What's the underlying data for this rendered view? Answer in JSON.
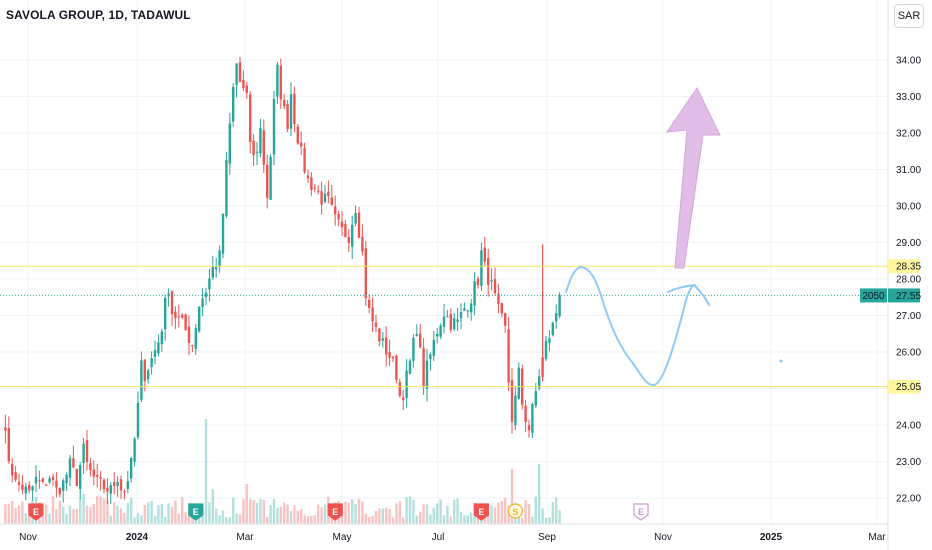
{
  "header": {
    "title": "SAVOLA GROUP, 1D, TADAWUL",
    "currency": "SAR"
  },
  "chart_data": {
    "type": "candlestick",
    "symbol": "SAVOLA GROUP",
    "interval": "1D",
    "exchange": "TADAWUL",
    "ylim": [
      21.6,
      34.9
    ],
    "y_ticks": [
      "22.00",
      "23.00",
      "24.00",
      "25.00",
      "26.00",
      "27.00",
      "28.00",
      "29.00",
      "30.00",
      "31.00",
      "32.00",
      "33.00",
      "34.00"
    ],
    "x_ticks": [
      {
        "label": "Nov",
        "bold": false
      },
      {
        "label": "2024",
        "bold": true
      },
      {
        "label": "Mar",
        "bold": false
      },
      {
        "label": "May",
        "bold": false
      },
      {
        "label": "Jul",
        "bold": false
      },
      {
        "label": "Sep",
        "bold": false
      },
      {
        "label": "Nov",
        "bold": false
      },
      {
        "label": "2025",
        "bold": true
      },
      {
        "label": "Mar",
        "bold": false
      }
    ],
    "colors": {
      "up": "#26a69a",
      "down": "#ef5350",
      "level_line": "#f5e663",
      "last_price": "#26a69a",
      "arrow": "#e1bee7",
      "drawing": "#90caf9"
    },
    "horizontal_levels": [
      {
        "value": 28.35,
        "label": "28.35"
      },
      {
        "value": 25.05,
        "label": "25.05"
      }
    ],
    "last_price": {
      "value": 27.55,
      "label": "27.55",
      "extra": "2050"
    },
    "price_path": [
      [
        0,
        24.2
      ],
      [
        2,
        23.1
      ],
      [
        4,
        22.4
      ],
      [
        6,
        22.3
      ],
      [
        8,
        22.1
      ],
      [
        10,
        22.5
      ],
      [
        12,
        22.3
      ],
      [
        14,
        22.6
      ],
      [
        16,
        22.2
      ],
      [
        18,
        22.4
      ],
      [
        20,
        22.9
      ],
      [
        22,
        22.5
      ],
      [
        24,
        23.3
      ],
      [
        25,
        22.9
      ],
      [
        26,
        22.7
      ],
      [
        28,
        22.4
      ],
      [
        30,
        22.3
      ],
      [
        32,
        22.2
      ],
      [
        34,
        22.6
      ],
      [
        35,
        22.3
      ],
      [
        36,
        22.2
      ],
      [
        38,
        22.9
      ],
      [
        39,
        23.6
      ],
      [
        40,
        24.5
      ],
      [
        41,
        25.6
      ],
      [
        42,
        25.4
      ],
      [
        44,
        25.8
      ],
      [
        46,
        26.3
      ],
      [
        47,
        26.7
      ],
      [
        48,
        27.3
      ],
      [
        49,
        27.8
      ],
      [
        50,
        27.1
      ],
      [
        52,
        26.9
      ],
      [
        54,
        26.6
      ],
      [
        56,
        26.2
      ],
      [
        58,
        27.3
      ],
      [
        60,
        27.7
      ],
      [
        62,
        28.3
      ],
      [
        64,
        28.6
      ],
      [
        65,
        29.8
      ],
      [
        66,
        31.1
      ],
      [
        67,
        32.2
      ],
      [
        68,
        33.2
      ],
      [
        69,
        33.9
      ],
      [
        70,
        33.4
      ],
      [
        72,
        32.9
      ],
      [
        73,
        31.8
      ],
      [
        74,
        31.3
      ],
      [
        75,
        31.6
      ],
      [
        76,
        32.1
      ],
      [
        77,
        31.2
      ],
      [
        78,
        30.3
      ],
      [
        79,
        31.4
      ],
      [
        80,
        32.8
      ],
      [
        81,
        33.7
      ],
      [
        82,
        33.1
      ],
      [
        83,
        32.6
      ],
      [
        84,
        32.3
      ],
      [
        85,
        33.1
      ],
      [
        86,
        32.4
      ],
      [
        88,
        31.4
      ],
      [
        90,
        30.7
      ],
      [
        92,
        30.5
      ],
      [
        94,
        30.2
      ],
      [
        96,
        30.1
      ],
      [
        98,
        29.6
      ],
      [
        100,
        29.3
      ],
      [
        102,
        29.2
      ],
      [
        104,
        30.0
      ],
      [
        106,
        28.7
      ],
      [
        107,
        27.6
      ],
      [
        108,
        27.1
      ],
      [
        110,
        26.6
      ],
      [
        112,
        26.2
      ],
      [
        114,
        25.9
      ],
      [
        116,
        25.4
      ],
      [
        117,
        24.8
      ],
      [
        118,
        24.9
      ],
      [
        120,
        25.7
      ],
      [
        122,
        26.7
      ],
      [
        124,
        25.2
      ],
      [
        126,
        25.9
      ],
      [
        128,
        26.6
      ],
      [
        130,
        27.1
      ],
      [
        132,
        26.8
      ],
      [
        134,
        26.8
      ],
      [
        136,
        27.2
      ],
      [
        138,
        27.5
      ],
      [
        140,
        28.0
      ],
      [
        141,
        28.7
      ],
      [
        142,
        28.3
      ],
      [
        144,
        27.8
      ],
      [
        146,
        27.1
      ],
      [
        148,
        26.6
      ],
      [
        149,
        25.2
      ],
      [
        150,
        24.2
      ],
      [
        151,
        24.7
      ],
      [
        152,
        25.4
      ],
      [
        153,
        24.6
      ],
      [
        154,
        24.2
      ],
      [
        155,
        23.9
      ],
      [
        156,
        24.4
      ],
      [
        158,
        25.4
      ],
      [
        160,
        26.2
      ],
      [
        162,
        26.7
      ],
      [
        164,
        27.5
      ]
    ],
    "volume_spike_days": [
      {
        "day": 60,
        "h": 105
      },
      {
        "day": 150,
        "h": 55
      },
      {
        "day": 158,
        "h": 60
      },
      {
        "day": 62,
        "h": 35
      },
      {
        "day": 24,
        "h": 30
      },
      {
        "day": 72,
        "h": 40
      }
    ],
    "event_markers": [
      {
        "day": 10,
        "label": "E",
        "color": "#ef5350"
      },
      {
        "day": 57,
        "label": "E",
        "color": "#26a69a"
      },
      {
        "day": 98,
        "label": "E",
        "color": "#ef5350"
      },
      {
        "day": 141,
        "label": "E",
        "color": "#ef5350"
      },
      {
        "day": 151,
        "label": "S",
        "color": "#f0b429"
      },
      {
        "day": 181,
        "label": "E",
        "color": "#ce93d8"
      }
    ]
  }
}
